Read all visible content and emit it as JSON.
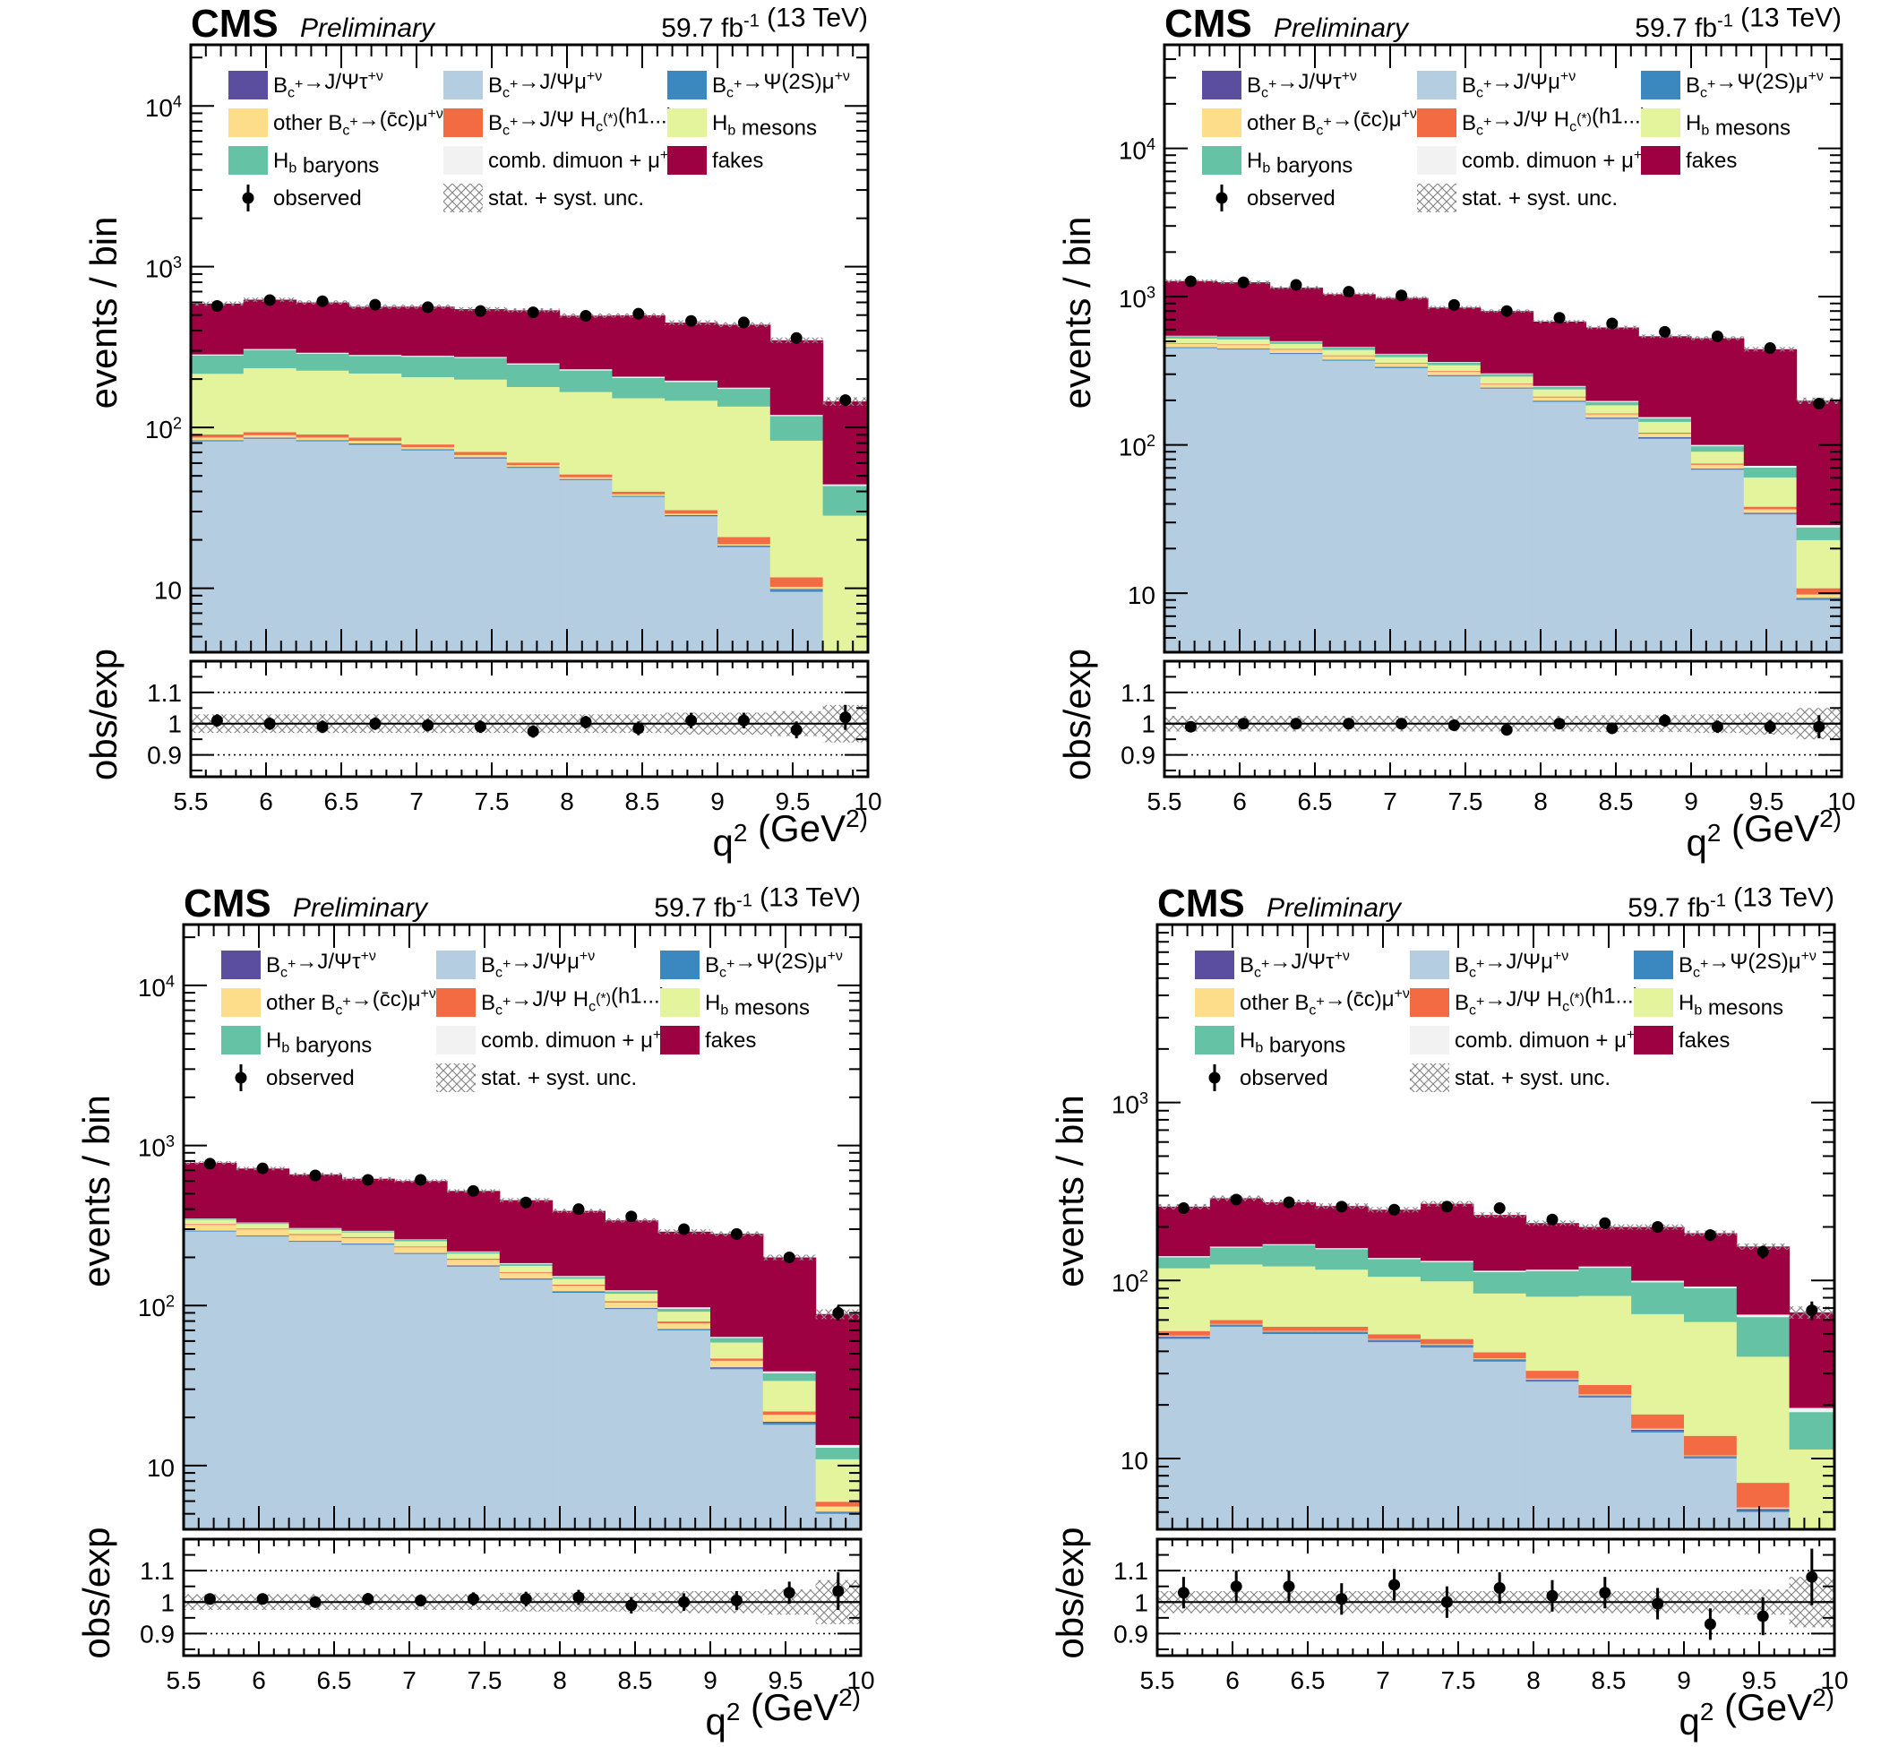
{
  "colors": {
    "btau": "#5b4e9e",
    "bmu": "#b4cde1",
    "bpsi2s": "#3b88c0",
    "other_cc": "#fddc8a",
    "hc": "#f26b43",
    "hb_mesons": "#e4f49c",
    "hb_baryons": "#66c2a5",
    "comb_dimuon": "#f2f2f2",
    "fakes": "#9e0142",
    "observed": "#000000",
    "unc_hatch": "#888888"
  },
  "legend": [
    {
      "key": "btau",
      "label": "B_c^+→J/Ψτ^+ν",
      "icon": "filled-box"
    },
    {
      "key": "bmu",
      "label": "B_c^+→J/Ψμ^+ν",
      "icon": "filled-box"
    },
    {
      "key": "bpsi2s",
      "label": "B_c^+→Ψ(2S)μ^+ν",
      "icon": "filled-box"
    },
    {
      "key": "other_cc",
      "label": "other B_c^+→(c̄c)μ^+ν",
      "icon": "filled-box"
    },
    {
      "key": "hc",
      "label": "B_c^+→J/Ψ H_c^(*)(h1...)",
      "icon": "filled-box"
    },
    {
      "key": "hb_mesons",
      "label": "H_b mesons",
      "icon": "filled-box"
    },
    {
      "key": "hb_baryons",
      "label": "H_b baryons",
      "icon": "filled-box"
    },
    {
      "key": "comb_dimuon",
      "label": "comb. dimuon + μ^+",
      "icon": "filled-box"
    },
    {
      "key": "fakes",
      "label": "fakes",
      "icon": "filled-box"
    },
    {
      "key": "observed",
      "label": "observed",
      "icon": "marker"
    },
    {
      "key": "unc",
      "label": "stat. + syst. unc.",
      "icon": "hatched-box"
    }
  ],
  "chart_data": [
    {
      "type": "bar",
      "header": {
        "experiment": "CMS",
        "status": "Preliminary",
        "lumi": "59.7 fb^-1 (13 TeV)"
      },
      "xlabel": "q^2 (GeV^2)",
      "ylabel": "events / bin",
      "ratio_ylabel": "obs/exp",
      "xlim": [
        5.5,
        10
      ],
      "ylim": [
        4,
        24000
      ],
      "yscale": "log",
      "ratio_ylim": [
        0.83,
        1.2
      ],
      "xticks": [
        "5.5",
        "6",
        "6.5",
        "7",
        "7.5",
        "8",
        "8.5",
        "9",
        "9.5",
        "10"
      ],
      "yticks": [
        "10",
        "10^2",
        "10^3",
        "10^4"
      ],
      "ratio_yticks": [
        "0.9",
        "1",
        "1.1"
      ],
      "bin_edges": [
        5.5,
        5.85,
        6.2,
        6.55,
        6.9,
        7.25,
        7.6,
        7.95,
        8.3,
        8.65,
        9.0,
        9.35,
        9.7,
        10.0
      ],
      "stack": {
        "bmu": [
          82,
          85,
          82,
          78,
          72,
          64,
          56,
          47,
          37,
          28,
          18,
          9.5,
          0.1
        ],
        "bpsi2s": [
          1,
          1,
          1,
          1,
          1,
          1,
          0.6,
          0.5,
          0.4,
          0.3,
          0.3,
          0.3,
          0.01
        ],
        "btau": [
          0.5,
          0.5,
          0.5,
          0.5,
          0.4,
          0.4,
          0.3,
          0.3,
          0.2,
          0.2,
          0.1,
          0.1,
          0.01
        ],
        "other_cc": [
          3,
          3,
          3,
          3,
          2,
          2,
          1.5,
          1.2,
          0.8,
          0.6,
          0.4,
          0.3,
          0.05
        ],
        "hc": [
          4,
          4,
          4,
          4,
          3,
          3,
          2,
          2,
          1.5,
          1.5,
          2,
          1.5,
          0.1
        ],
        "hb_mesons": [
          125,
          140,
          135,
          130,
          127,
          128,
          118,
          115,
          112,
          116,
          114,
          71,
          28
        ],
        "hb_baryons": [
          65,
          70,
          62,
          62,
          70,
          72,
          68,
          60,
          51,
          45,
          39,
          35,
          15
        ],
        "comb_dimuon": [
          4,
          4,
          4,
          4,
          4,
          4,
          4,
          4,
          4,
          4,
          3,
          2,
          1
        ],
        "fakes": [
          305,
          316,
          308,
          281,
          285,
          270,
          285,
          266,
          291,
          253,
          259,
          229,
          101
        ]
      },
      "observed": [
        570,
        620,
        610,
        580,
        560,
        530,
        520,
        495,
        510,
        460,
        450,
        360,
        148
      ],
      "ratio": [
        1.01,
        1.0,
        0.99,
        1.0,
        0.995,
        0.99,
        0.975,
        1.005,
        0.985,
        1.01,
        1.01,
        0.98,
        1.02
      ],
      "ratio_err": [
        0.02,
        0.02,
        0.02,
        0.02,
        0.02,
        0.02,
        0.02,
        0.02,
        0.022,
        0.025,
        0.025,
        0.027,
        0.04
      ],
      "unc_band": [
        0.03,
        0.03,
        0.03,
        0.03,
        0.03,
        0.03,
        0.03,
        0.03,
        0.03,
        0.035,
        0.035,
        0.04,
        0.06
      ]
    },
    {
      "type": "bar",
      "header": {
        "experiment": "CMS",
        "status": "Preliminary",
        "lumi": "59.7 fb^-1 (13 TeV)"
      },
      "xlabel": "q^2 (GeV^2)",
      "ylabel": "events / bin",
      "ratio_ylabel": "obs/exp",
      "xlim": [
        5.5,
        10
      ],
      "ylim": [
        4,
        50000
      ],
      "yscale": "log",
      "ratio_ylim": [
        0.83,
        1.2
      ],
      "xticks": [
        "5.5",
        "6",
        "6.5",
        "7",
        "7.5",
        "8",
        "8.5",
        "9",
        "9.5",
        "10"
      ],
      "yticks": [
        "10",
        "10^2",
        "10^3",
        "10^4"
      ],
      "ratio_yticks": [
        "0.9",
        "1",
        "1.1"
      ],
      "bin_edges": [
        5.5,
        5.85,
        6.2,
        6.55,
        6.9,
        7.25,
        7.6,
        7.95,
        8.3,
        8.65,
        9.0,
        9.35,
        9.7,
        10.0
      ],
      "stack": {
        "bmu": [
          450,
          440,
          410,
          370,
          330,
          290,
          240,
          195,
          150,
          110,
          68,
          34,
          9
        ],
        "bpsi2s": [
          5,
          5,
          5,
          5,
          4,
          4,
          3,
          3,
          2,
          2,
          1,
          0.5,
          0.2
        ],
        "btau": [
          2,
          2,
          2,
          2,
          2,
          2,
          1,
          1,
          1,
          1,
          0.5,
          0.3,
          0.1
        ],
        "other_cc": [
          25,
          25,
          22,
          20,
          18,
          15,
          12,
          10,
          8,
          6,
          4,
          2,
          0.5
        ],
        "hc": [
          5,
          5,
          5,
          5,
          4,
          4,
          3,
          3,
          2,
          2,
          1.5,
          1.5,
          1
        ],
        "hb_mesons": [
          35,
          38,
          36,
          35,
          33,
          30,
          30,
          25,
          22,
          22,
          15,
          22,
          12
        ],
        "hb_baryons": [
          20,
          20,
          18,
          18,
          18,
          15,
          12,
          10,
          10,
          8,
          8,
          10,
          5
        ],
        "comb_dimuon": [
          3,
          3,
          3,
          3,
          3,
          3,
          3,
          3,
          3,
          3,
          2,
          2,
          1
        ],
        "fakes": [
          730,
          712,
          649,
          582,
          569,
          482,
          496,
          430,
          422,
          387,
          425,
          370,
          170
        ]
      },
      "observed": [
        1270,
        1250,
        1200,
        1080,
        1020,
        880,
        800,
        720,
        660,
        580,
        540,
        450,
        190
      ],
      "ratio": [
        0.99,
        1.0,
        1.0,
        1.0,
        1.0,
        0.995,
        0.98,
        1.0,
        0.985,
        1.01,
        0.99,
        0.99,
        0.99
      ],
      "ratio_err": [
        0.014,
        0.014,
        0.014,
        0.014,
        0.016,
        0.016,
        0.016,
        0.017,
        0.018,
        0.02,
        0.02,
        0.022,
        0.037
      ],
      "unc_band": [
        0.025,
        0.025,
        0.025,
        0.025,
        0.025,
        0.025,
        0.025,
        0.025,
        0.027,
        0.027,
        0.03,
        0.035,
        0.05
      ]
    },
    {
      "type": "bar",
      "header": {
        "experiment": "CMS",
        "status": "Preliminary",
        "lumi": "59.7 fb^-1 (13 TeV)"
      },
      "xlabel": "q^2 (GeV^2)",
      "ylabel": "events / bin",
      "ratio_ylabel": "obs/exp",
      "xlim": [
        5.5,
        10
      ],
      "ylim": [
        4,
        24000
      ],
      "yscale": "log",
      "ratio_ylim": [
        0.83,
        1.2
      ],
      "xticks": [
        "5.5",
        "6",
        "6.5",
        "7",
        "7.5",
        "8",
        "8.5",
        "9",
        "9.5",
        "10"
      ],
      "yticks": [
        "10",
        "10^2",
        "10^3",
        "10^4"
      ],
      "ratio_yticks": [
        "0.9",
        "1",
        "1.1"
      ],
      "bin_edges": [
        5.5,
        5.85,
        6.2,
        6.55,
        6.9,
        7.25,
        7.6,
        7.95,
        8.3,
        8.65,
        9.0,
        9.35,
        9.7,
        10.0
      ],
      "stack": {
        "bmu": [
          290,
          270,
          250,
          240,
          210,
          175,
          145,
          120,
          95,
          70,
          40,
          18,
          5
        ],
        "bpsi2s": [
          3,
          3,
          3,
          3,
          2,
          2,
          2,
          2,
          1,
          1,
          0.8,
          0.5,
          0.1
        ],
        "btau": [
          1,
          1,
          1,
          1,
          1,
          1,
          1,
          1,
          0.5,
          0.5,
          0.4,
          0.3,
          0.05
        ],
        "other_cc": [
          25,
          25,
          22,
          20,
          18,
          15,
          12,
          10,
          8,
          6,
          4,
          2,
          0.4
        ],
        "hc": [
          4,
          4,
          4,
          4,
          3,
          3,
          2,
          2,
          2,
          2,
          1.5,
          1,
          0.4
        ],
        "hb_mesons": [
          20,
          20,
          18,
          18,
          18,
          15,
          15,
          12,
          12,
          12,
          12,
          12,
          5
        ],
        "hb_baryons": [
          5,
          5,
          5,
          5,
          5,
          5,
          5,
          4,
          4,
          4,
          4,
          4,
          2
        ],
        "comb_dimuon": [
          2,
          2,
          2,
          2,
          2,
          2,
          2,
          2,
          2,
          2,
          1,
          1,
          0.5
        ],
        "fakes": [
          430,
          388,
          355,
          327,
          341,
          302,
          271,
          237,
          216,
          192,
          217,
          161,
          75
        ]
      },
      "observed": [
        770,
        720,
        650,
        610,
        610,
        520,
        440,
        400,
        360,
        300,
        280,
        200,
        90
      ],
      "ratio": [
        1.01,
        1.01,
        1.0,
        1.01,
        1.005,
        1.01,
        1.01,
        1.015,
        0.99,
        1.0,
        1.005,
        1.03,
        1.035
      ],
      "ratio_err": [
        0.017,
        0.017,
        0.018,
        0.019,
        0.019,
        0.021,
        0.023,
        0.024,
        0.026,
        0.028,
        0.03,
        0.035,
        0.06
      ],
      "unc_band": [
        0.025,
        0.025,
        0.025,
        0.025,
        0.025,
        0.025,
        0.03,
        0.03,
        0.03,
        0.035,
        0.035,
        0.04,
        0.07
      ]
    },
    {
      "type": "bar",
      "header": {
        "experiment": "CMS",
        "status": "Preliminary",
        "lumi": "59.7 fb^-1 (13 TeV)"
      },
      "xlabel": "q^2 (GeV^2)",
      "ylabel": "events / bin",
      "ratio_ylabel": "obs/exp",
      "xlim": [
        5.5,
        10
      ],
      "ylim": [
        4,
        10000
      ],
      "yscale": "log",
      "ratio_ylim": [
        0.83,
        1.2
      ],
      "xticks": [
        "5.5",
        "6",
        "6.5",
        "7",
        "7.5",
        "8",
        "8.5",
        "9",
        "9.5",
        "10"
      ],
      "yticks": [
        "10",
        "10^2",
        "10^3"
      ],
      "ratio_yticks": [
        "0.9",
        "1",
        "1.1"
      ],
      "bin_edges": [
        5.5,
        5.85,
        6.2,
        6.55,
        6.9,
        7.25,
        7.6,
        7.95,
        8.3,
        8.65,
        9.0,
        9.35,
        9.7,
        10.0
      ],
      "stack": {
        "bmu": [
          47,
          55,
          50,
          50,
          45,
          42,
          35,
          27,
          22,
          14,
          10,
          5,
          0.1
        ],
        "bpsi2s": [
          1,
          1,
          1,
          1,
          1,
          1,
          0.8,
          0.5,
          0.4,
          0.3,
          0.2,
          0.1,
          0.01
        ],
        "btau": [
          0.5,
          0.5,
          0.5,
          0.5,
          0.4,
          0.4,
          0.3,
          0.3,
          0.2,
          0.2,
          0.1,
          0.1,
          0.01
        ],
        "other_cc": [
          0.5,
          0.5,
          0.5,
          0.5,
          0.5,
          0.5,
          0.4,
          0.3,
          0.3,
          0.2,
          0.1,
          0.1,
          0.01
        ],
        "hc": [
          3,
          3,
          3,
          3,
          3,
          3,
          3,
          3,
          3,
          3,
          3,
          2,
          0.1
        ],
        "hb_mesons": [
          65,
          63,
          65,
          60,
          55,
          52,
          45,
          50,
          56,
          47,
          45,
          30,
          11
        ],
        "hb_baryons": [
          18,
          30,
          38,
          35,
          27,
          28,
          27,
          32,
          36,
          33,
          32,
          25,
          7
        ],
        "comb_dimuon": [
          2,
          2,
          2,
          2,
          2,
          2,
          2,
          2,
          2,
          2,
          2,
          2,
          1
        ],
        "fakes": [
          123,
          135,
          115,
          110,
          116,
          141,
          120,
          95,
          80,
          100,
          92,
          91,
          47
        ]
      },
      "observed": [
        255,
        285,
        275,
        260,
        250,
        260,
        255,
        220,
        210,
        200,
        180,
        145,
        68
      ],
      "ratio": [
        1.03,
        1.05,
        1.05,
        1.01,
        1.055,
        1.0,
        1.045,
        1.02,
        1.03,
        0.995,
        0.93,
        0.955,
        1.08
      ],
      "ratio_err": [
        0.05,
        0.05,
        0.05,
        0.05,
        0.05,
        0.05,
        0.05,
        0.05,
        0.05,
        0.05,
        0.05,
        0.06,
        0.09
      ],
      "unc_band": [
        0.035,
        0.035,
        0.035,
        0.035,
        0.035,
        0.035,
        0.035,
        0.035,
        0.035,
        0.035,
        0.035,
        0.04,
        0.08
      ]
    }
  ]
}
